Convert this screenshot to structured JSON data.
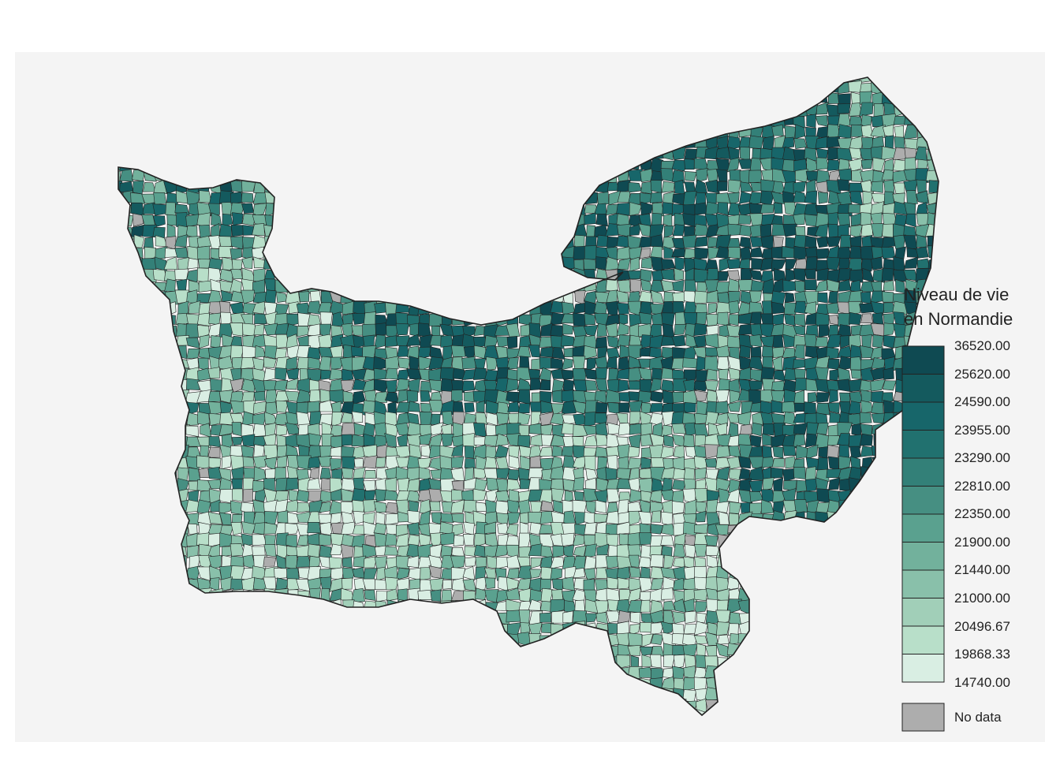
{
  "legend": {
    "title_line1": "Niveau de vie",
    "title_line2": "en Normandie",
    "breaks": [
      "36520.00",
      "25620.00",
      "24590.00",
      "23955.00",
      "23290.00",
      "22810.00",
      "22350.00",
      "21900.00",
      "21440.00",
      "21000.00",
      "20496.67",
      "19868.33",
      "14740.00"
    ],
    "colors": [
      "#0f4a52",
      "#145a5e",
      "#17666a",
      "#21716f",
      "#338078",
      "#468f82",
      "#5aa18f",
      "#72b19c",
      "#89c0aa",
      "#a1cfb8",
      "#b8dfc9",
      "#d9eee3"
    ],
    "nodata_label": "No data",
    "nodata_color": "#adadad"
  },
  "colors": {
    "background": "#f4f4f4",
    "border": "#222222"
  }
}
